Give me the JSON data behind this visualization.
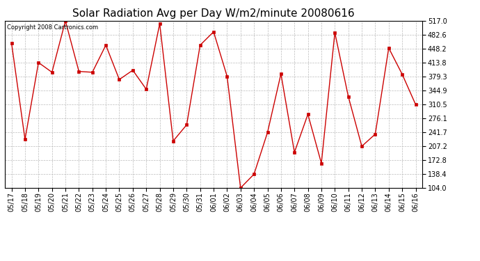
{
  "title": "Solar Radiation Avg per Day W/m2/minute 20080616",
  "copyright": "Copyright 2008 Cartronics.com",
  "dates": [
    "05/17",
    "05/18",
    "05/19",
    "05/20",
    "05/21",
    "05/22",
    "05/23",
    "05/24",
    "05/25",
    "05/26",
    "05/27",
    "05/28",
    "05/29",
    "05/30",
    "05/31",
    "06/01",
    "06/02",
    "06/03",
    "06/04",
    "06/05",
    "06/06",
    "06/07",
    "06/08",
    "06/09",
    "06/10",
    "06/11",
    "06/12",
    "06/13",
    "06/14",
    "06/15",
    "06/16"
  ],
  "values": [
    462,
    224,
    414,
    390,
    517,
    392,
    390,
    457,
    372,
    395,
    348,
    510,
    220,
    260,
    457,
    490,
    380,
    104,
    138,
    241,
    386,
    192,
    286,
    165,
    488,
    330,
    207,
    237,
    450,
    385,
    310
  ],
  "line_color": "#cc0000",
  "marker_color": "#cc0000",
  "bg_color": "#ffffff",
  "plot_bg_color": "#ffffff",
  "grid_color": "#bbbbbb",
  "yticks": [
    104.0,
    138.4,
    172.8,
    207.2,
    241.7,
    276.1,
    310.5,
    344.9,
    379.3,
    413.8,
    448.2,
    482.6,
    517.0
  ],
  "ymin": 104.0,
  "ymax": 517.0,
  "title_fontsize": 11,
  "copyright_fontsize": 6,
  "tick_fontsize": 7,
  "ylabel_fontsize": 7
}
